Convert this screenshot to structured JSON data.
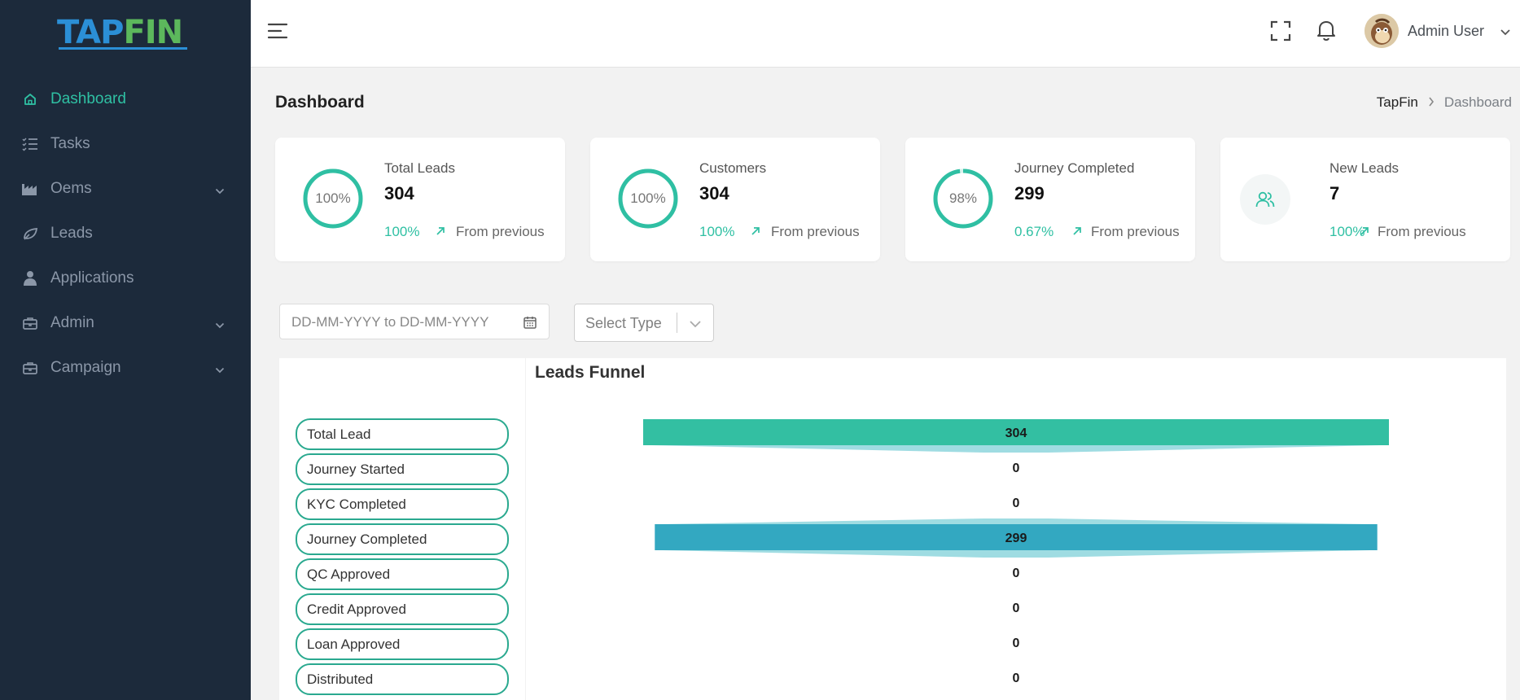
{
  "app": {
    "logo_tap": "TAP",
    "logo_fin": "FIN"
  },
  "sidebar": {
    "items": [
      {
        "label": "Dashboard",
        "icon": "home-icon",
        "active": true,
        "has_children": false
      },
      {
        "label": "Tasks",
        "icon": "list-icon",
        "active": false,
        "has_children": false
      },
      {
        "label": "Oems",
        "icon": "factory-icon",
        "active": false,
        "has_children": true
      },
      {
        "label": "Leads",
        "icon": "leaf-icon",
        "active": false,
        "has_children": false
      },
      {
        "label": "Applications",
        "icon": "user-icon",
        "active": false,
        "has_children": false
      },
      {
        "label": "Admin",
        "icon": "briefcase-icon",
        "active": false,
        "has_children": true
      },
      {
        "label": "Campaign",
        "icon": "briefcase-icon",
        "active": false,
        "has_children": true
      }
    ]
  },
  "topbar": {
    "user_name": "Admin User"
  },
  "page": {
    "title": "Dashboard",
    "breadcrumb": {
      "home": "TapFin",
      "current": "Dashboard"
    }
  },
  "cards": [
    {
      "ring_label": "100%",
      "ring_fraction": 1.0,
      "title": "Total Leads",
      "value": "304",
      "pct": "100%",
      "from": "From previous"
    },
    {
      "ring_label": "100%",
      "ring_fraction": 1.0,
      "title": "Customers",
      "value": "304",
      "pct": "100%",
      "from": "From previous"
    },
    {
      "ring_label": "98%",
      "ring_fraction": 0.98,
      "title": "Journey Completed",
      "value": "299",
      "pct": "0.67%",
      "from": "From previous"
    },
    {
      "icon": "users-icon",
      "title": "New Leads",
      "value": "7",
      "pct": "100%",
      "from": "From previous"
    }
  ],
  "filters": {
    "date_placeholder": "DD-MM-YYYY to DD-MM-YYYY",
    "select_placeholder": "Select Type"
  },
  "funnel": {
    "title": "Leads Funnel",
    "stages": [
      {
        "label": "Total Lead",
        "value": 304
      },
      {
        "label": "Journey Started",
        "value": 0
      },
      {
        "label": "KYC Completed",
        "value": 0
      },
      {
        "label": "Journey Completed",
        "value": 299
      },
      {
        "label": "QC Approved",
        "value": 0
      },
      {
        "label": "Credit Approved",
        "value": 0
      },
      {
        "label": "Loan Approved",
        "value": 0
      },
      {
        "label": "Distributed",
        "value": 0
      }
    ],
    "colors": {
      "total": "#33bfa2",
      "completed": "#33a8c1",
      "connector": "#7fd0d8"
    }
  },
  "colors": {
    "accent": "#2fc0a3",
    "sidebar_bg": "#1c2a3b"
  }
}
